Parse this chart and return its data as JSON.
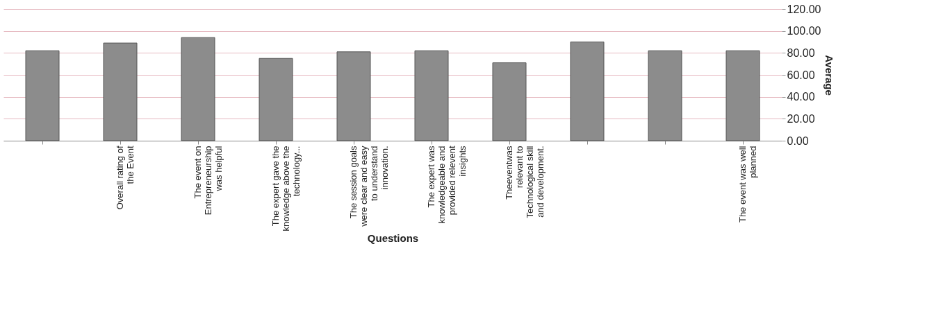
{
  "chart_data": {
    "type": "bar",
    "xlabel": "Questions",
    "ylabel": "Average",
    "categories": [
      null,
      "Overall rating of the Event",
      "The event on Entrepreneurship was helpful",
      "The expert gave the knowledge above the technology...",
      "The session goals were clear and easy to understand innovation.",
      "The expert was knowledgeable and provided relevent insights",
      "Theeventwas relevant to Technological skill and development.",
      null,
      null,
      "The event was well planned"
    ],
    "values": [
      82,
      89,
      94,
      75,
      81,
      82,
      71,
      90,
      82,
      82
    ],
    "color": "#8c8c8c",
    "ylim": [
      0,
      120
    ],
    "yticks": [
      {
        "value": 0,
        "label": "0.00"
      },
      {
        "value": 20,
        "label": "20.00"
      },
      {
        "value": 40,
        "label": "40.00"
      },
      {
        "value": 60,
        "label": "60.00"
      },
      {
        "value": 80,
        "label": "80.00"
      },
      {
        "value": 100,
        "label": "100.00"
      },
      {
        "value": 120,
        "label": "120.00"
      }
    ],
    "grid": "y"
  }
}
